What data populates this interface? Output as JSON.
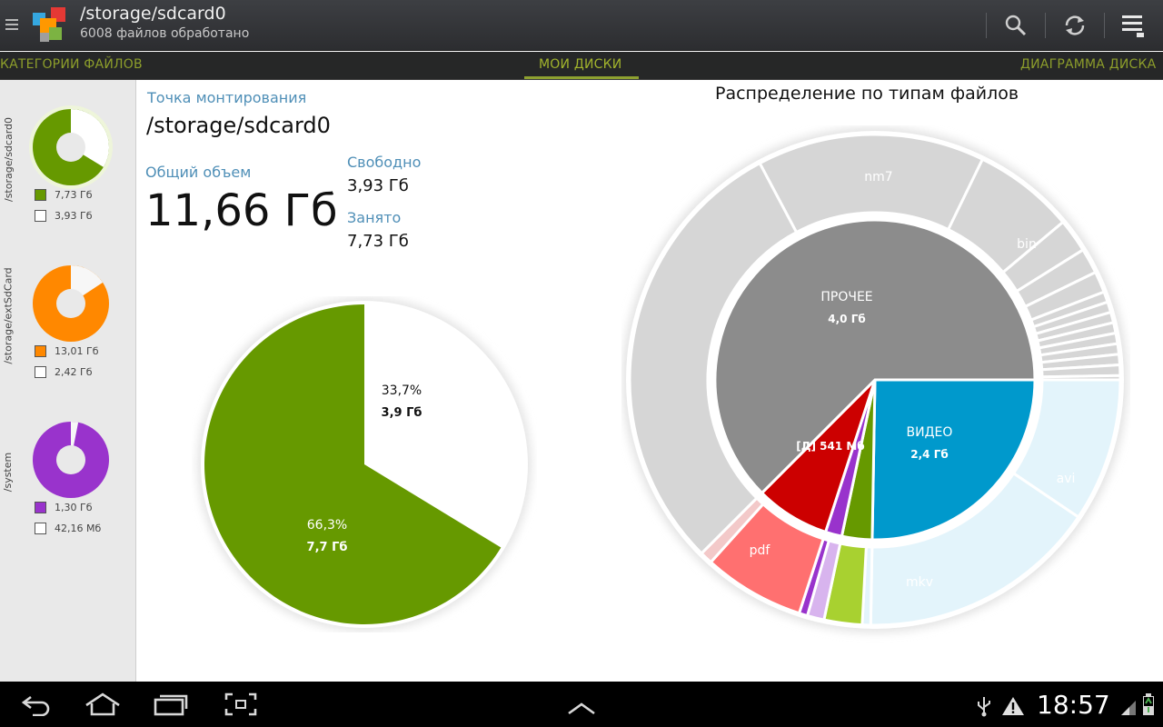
{
  "app": {
    "title": "/storage/sdcard0",
    "subtitle": "6008 файлов обработано"
  },
  "tabs": [
    {
      "label": "КАТЕГОРИИ ФАЙЛОВ",
      "selected": false
    },
    {
      "label": "МОИ ДИСКИ",
      "selected": true
    },
    {
      "label": "ДИАГРАММА ДИСКА",
      "selected": false
    }
  ],
  "sidebar": {
    "drives": [
      {
        "path": "/storage/sdcard0",
        "color": "#669900",
        "used": "7,73 Гб",
        "free": "3,93 Гб",
        "used_fraction": 0.663,
        "selected": true
      },
      {
        "path": "/storage/extSdCard",
        "color": "#ff8800",
        "used": "13,01 Гб",
        "free": "2,42 Гб",
        "used_fraction": 0.843,
        "selected": false
      },
      {
        "path": "/system",
        "color": "#9933cc",
        "used": "1,30 Гб",
        "free": "42,16 Мб",
        "used_fraction": 0.969,
        "selected": false
      }
    ]
  },
  "details": {
    "mount_label": "Точка монтирования",
    "mount_value": "/storage/sdcard0",
    "total_label": "Общий объем",
    "total_value": "11,66 Гб",
    "free_label": "Свободно",
    "free_value": "3,93 Гб",
    "used_label": "Занято",
    "used_value": "7,73 Гб"
  },
  "pie": {
    "used_color": "#669900",
    "free_color": "#ffffff",
    "used_percent": "66,3%",
    "used_size": "7,7 Гб",
    "free_percent": "33,7%",
    "free_size": "3,9 Гб"
  },
  "file_types": {
    "title": "Распределение по типам файлов",
    "inner": [
      {
        "label": "ПРОЧЕЕ",
        "size": "4,0 Гб",
        "color": "#8c8c8c"
      },
      {
        "label": "ВИДЕО",
        "size": "2,4 Гб",
        "color": "#0099cc"
      },
      {
        "label": "[Д] 541 Мб",
        "size": "",
        "color": "#cc0000"
      }
    ],
    "outer_labels": [
      "nm7",
      "bin",
      "avi",
      "mkv",
      "pdf"
    ]
  },
  "statusbar": {
    "time": "18:57"
  }
}
